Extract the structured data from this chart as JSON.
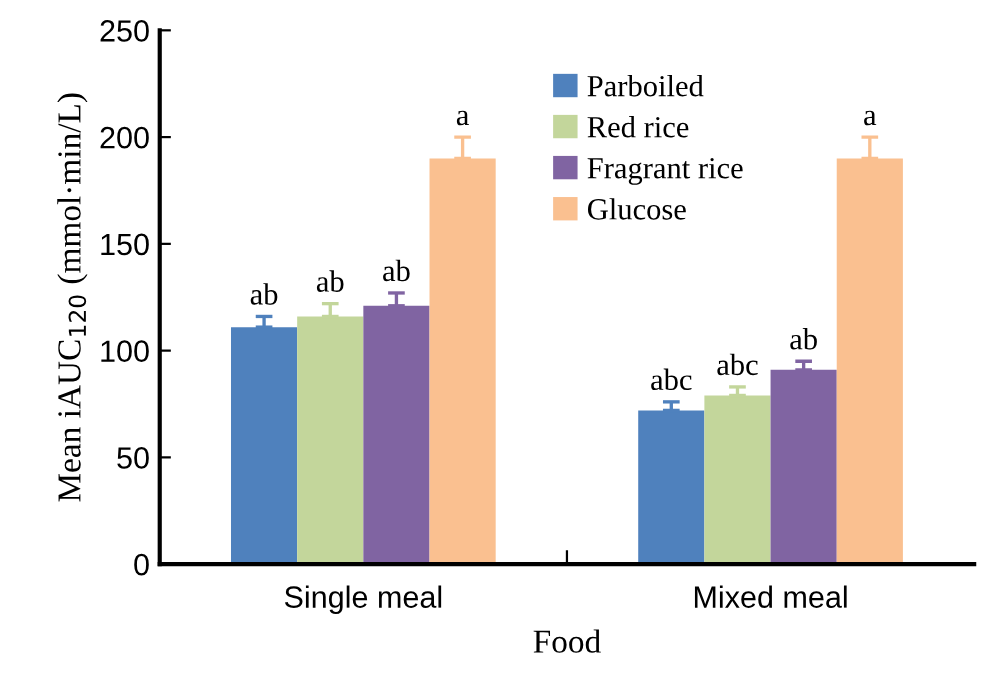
{
  "chart_data": {
    "type": "bar",
    "xlabel": "Food",
    "ylabel": "Mean iAUC$_{120}$ (mmol·min/L)",
    "categories": [
      "Single meal",
      "Mixed meal"
    ],
    "series": [
      {
        "name": "Parboiled",
        "color": "#4f81bd",
        "values": [
          111,
          72
        ],
        "errors": [
          5,
          4
        ],
        "value_labels": [
          "ab",
          "abc"
        ]
      },
      {
        "name": "Red rice",
        "color": "#c3d69b",
        "values": [
          116,
          79
        ],
        "errors": [
          6,
          4
        ],
        "value_labels": [
          "ab",
          "abc"
        ]
      },
      {
        "name": "Fragrant rice",
        "color": "#8064a2",
        "values": [
          121,
          91
        ],
        "errors": [
          6,
          4
        ],
        "value_labels": [
          "ab",
          "ab"
        ]
      },
      {
        "name": "Glucose",
        "color": "#fac090",
        "values": [
          190,
          190
        ],
        "errors": [
          10,
          10
        ],
        "value_labels": [
          "a",
          "a"
        ]
      }
    ],
    "ylim": [
      0,
      250
    ],
    "yticks": [
      0,
      50,
      100,
      150,
      200,
      250
    ],
    "grid": false,
    "legend": "top"
  }
}
